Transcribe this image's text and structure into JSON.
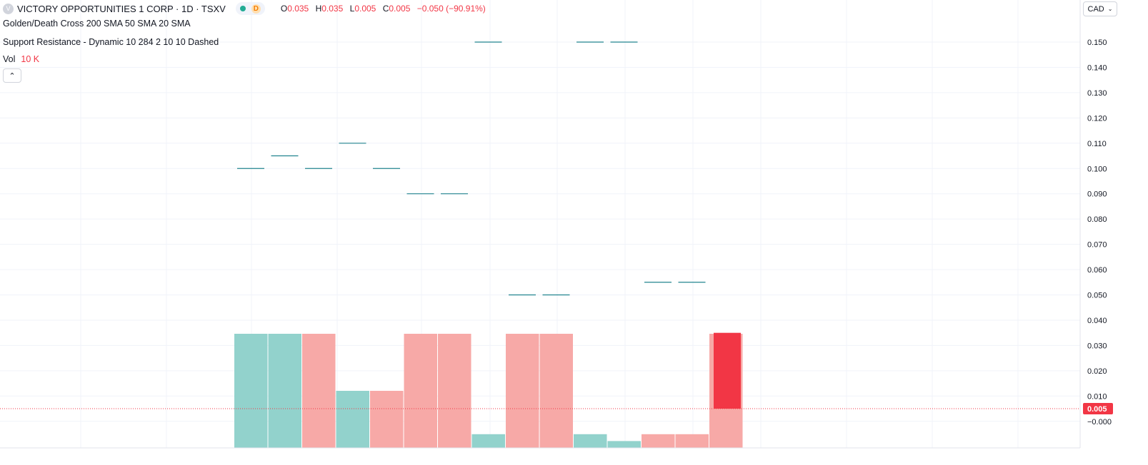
{
  "header": {
    "logo_letter": "V",
    "symbol_title": "VICTORY OPPORTUNITIES 1 CORP · 1D · TSXV",
    "interval_badge": "D",
    "ohlc": [
      {
        "key": "O",
        "value": "0.035"
      },
      {
        "key": "H",
        "value": "0.035"
      },
      {
        "key": "L",
        "value": "0.005"
      },
      {
        "key": "C",
        "value": "0.005"
      }
    ],
    "change": "−0.050 (−90.91%)"
  },
  "indicators": [
    "Golden/Death Cross 200 SMA 50 SMA 20 SMA",
    "Support Resistance - Dynamic 10 284 2 10 10 Dashed"
  ],
  "volume": {
    "label": "Vol",
    "value": "10 K"
  },
  "collapse_icon": "chevron-up-icon",
  "currency": {
    "label": "CAD",
    "icon": "chevron-down-icon"
  },
  "colors": {
    "up_volume": "#92d2cc",
    "down_volume": "#f7a9a7",
    "last_price": "#f23645",
    "sr_line": "#22848f",
    "grid": "#f0f3fa"
  },
  "chart_data": {
    "type": "bar",
    "price_axis": {
      "ticks": [
        "0.150",
        "0.140",
        "0.130",
        "0.120",
        "0.110",
        "0.100",
        "0.090",
        "0.080",
        "0.070",
        "0.060",
        "0.050",
        "0.040",
        "0.030",
        "0.020",
        "0.010",
        "−0.000"
      ],
      "range": [
        -0.001,
        0.15
      ]
    },
    "last_price": {
      "value": 0.005,
      "label": "0.005"
    },
    "last_candle": {
      "open": 0.035,
      "high": 0.035,
      "low": 0.005,
      "close": 0.005
    },
    "volume_series": {
      "relative_heights": [
        1.0,
        1.0,
        1.0,
        0.5,
        0.5,
        1.0,
        1.0,
        0.12,
        1.0,
        1.0,
        0.12,
        0.06,
        0.12,
        0.12,
        1.0
      ],
      "directions": [
        "up",
        "up",
        "down",
        "up",
        "down",
        "down",
        "down",
        "up",
        "down",
        "down",
        "up",
        "up",
        "down",
        "down",
        "down"
      ]
    },
    "support_resistance_levels": [
      0.1,
      0.105,
      0.1,
      0.11,
      0.1,
      0.09,
      0.09,
      0.15,
      0.05,
      0.05,
      0.15,
      0.15,
      0.055,
      0.055
    ],
    "grid": true
  }
}
